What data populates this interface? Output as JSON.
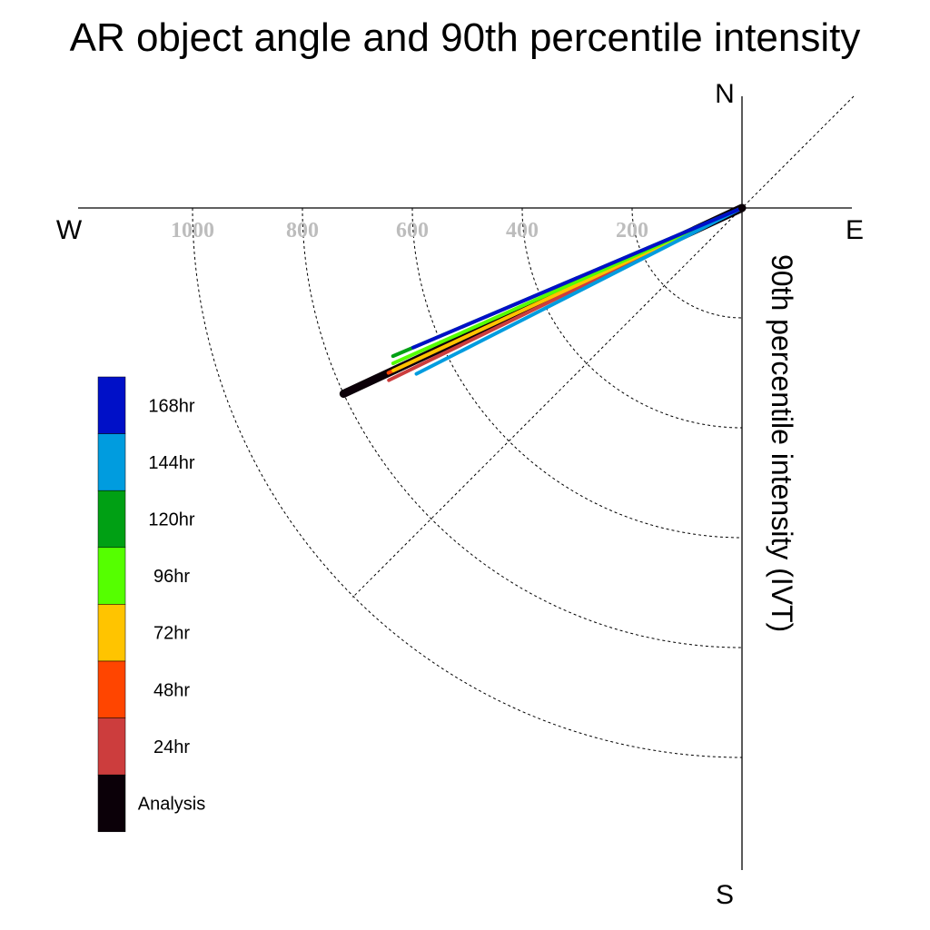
{
  "chart_data": {
    "type": "polar-vector",
    "title": "AR object angle and 90th percentile intensity",
    "ylabel": "90th percentile intensity (IVT)",
    "compass": {
      "north": "N",
      "south": "S",
      "east": "E",
      "west": "W"
    },
    "radial_ticks": [
      "1000",
      "800",
      "600",
      "400",
      "200"
    ],
    "radial_values": [
      1000,
      800,
      600,
      400,
      200
    ],
    "radial_max": 1150,
    "series": [
      {
        "name": "Analysis",
        "color": "#0b0008",
        "angle_deg": 25,
        "intensity": 800
      },
      {
        "name": "24hr",
        "color": "#cc3d3d",
        "angle_deg": 26,
        "intensity": 715
      },
      {
        "name": "48hr",
        "color": "#ff4500",
        "angle_deg": 25,
        "intensity": 710
      },
      {
        "name": "72hr",
        "color": "#ffc400",
        "angle_deg": 25,
        "intensity": 700
      },
      {
        "name": "96hr",
        "color": "#55ff00",
        "angle_deg": 24,
        "intensity": 695
      },
      {
        "name": "120hr",
        "color": "#00a014",
        "angle_deg": 23,
        "intensity": 690
      },
      {
        "name": "144hr",
        "color": "#009cdf",
        "angle_deg": 27,
        "intensity": 665
      },
      {
        "name": "168hr",
        "color": "#0010c8",
        "angle_deg": 23,
        "intensity": 650
      }
    ],
    "legend": [
      "168hr",
      "144hr",
      "120hr",
      "96hr",
      "72hr",
      "48hr",
      "24hr",
      "Analysis"
    ],
    "legend_colors": [
      "#0010c8",
      "#009cdf",
      "#00a014",
      "#55ff00",
      "#ffc400",
      "#ff4500",
      "#cc3d3d",
      "#0b0008"
    ],
    "grid": true
  }
}
